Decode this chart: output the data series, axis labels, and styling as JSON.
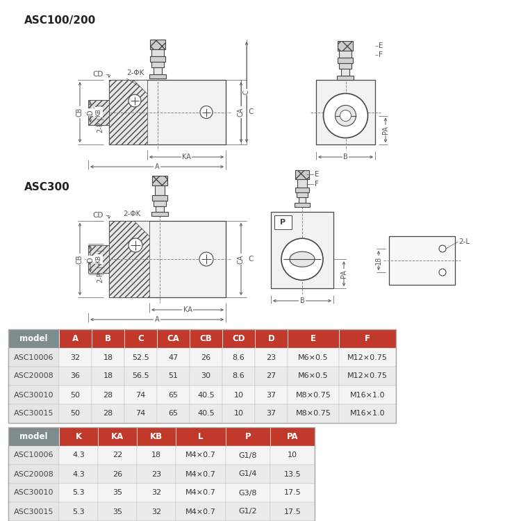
{
  "title1": "ASC100/200",
  "title2": "ASC300",
  "bg_color": "#ffffff",
  "table1_headers": [
    "model",
    "A",
    "B",
    "C",
    "CA",
    "CB",
    "CD",
    "D",
    "E",
    "F"
  ],
  "table1_data": [
    [
      "ASC10006",
      "32",
      "18",
      "52.5",
      "47",
      "26",
      "8.6",
      "23",
      "M6×0.5",
      "M12×0.75"
    ],
    [
      "ASC20008",
      "36",
      "18",
      "56.5",
      "51",
      "30",
      "8.6",
      "27",
      "M6×0.5",
      "M12×0.75"
    ],
    [
      "ASC30010",
      "50",
      "28",
      "74",
      "65",
      "40.5",
      "10",
      "37",
      "M8×0.75",
      "M16×1.0"
    ],
    [
      "ASC30015",
      "50",
      "28",
      "74",
      "65",
      "40.5",
      "10",
      "37",
      "M8×0.75",
      "M16×1.0"
    ]
  ],
  "table2_headers": [
    "model",
    "K",
    "KA",
    "KB",
    "L",
    "P",
    "PA"
  ],
  "table2_data": [
    [
      "ASC10006",
      "4.3",
      "22",
      "18",
      "M4×0.7",
      "G1/8",
      "10"
    ],
    [
      "ASC20008",
      "4.3",
      "26",
      "23",
      "M4×0.7",
      "G1/4",
      "13.5"
    ],
    [
      "ASC30010",
      "5.3",
      "35",
      "32",
      "M4×0.7",
      "G3/8",
      "17.5"
    ],
    [
      "ASC30015",
      "5.3",
      "35",
      "32",
      "M4×0.7",
      "G1/2",
      "17.5"
    ]
  ],
  "header_bg": "#c0392b",
  "header_fg": "#ffffff",
  "model_col_bg": "#7f8c8d",
  "model_col_fg": "#ffffff",
  "row_bg_light": "#f5f5f5",
  "row_bg_mid": "#ebebeb",
  "border_color": "#cccccc",
  "line_color": "#444444",
  "dim_color": "#555555",
  "hatch_color": "#888888"
}
